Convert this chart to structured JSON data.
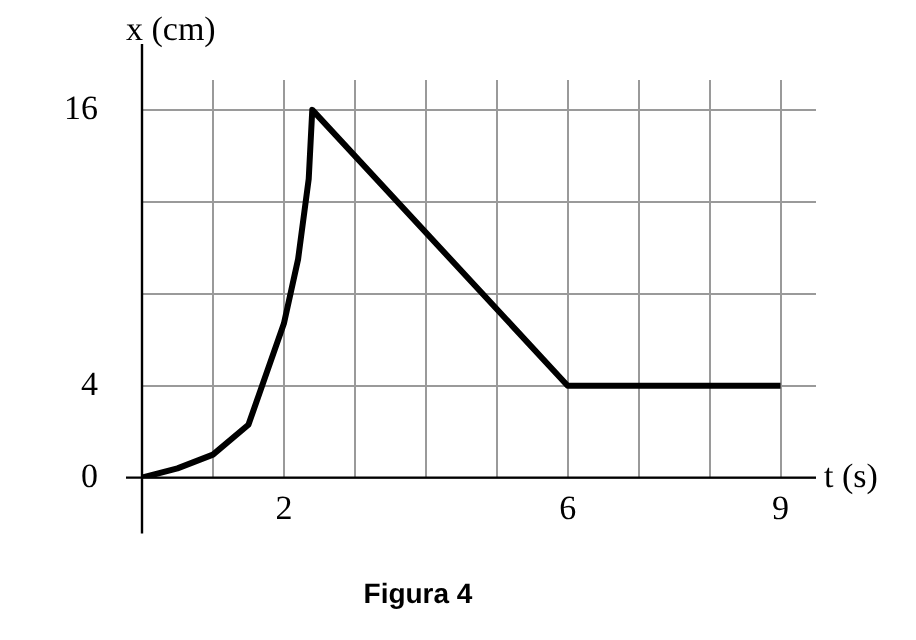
{
  "chart_data": {
    "type": "line",
    "title": "Figura 4",
    "xlabel": "t (s)",
    "ylabel": "x (cm)",
    "series": [
      {
        "color": "#000000",
        "x": [
          0,
          0.5,
          1,
          1.5,
          2,
          2.2,
          2.35,
          2.4,
          6,
          9
        ],
        "values": [
          0,
          0.4,
          1,
          2.3,
          6.7,
          9.5,
          13,
          16,
          4,
          4
        ]
      }
    ],
    "xlim": [
      0,
      9.5
    ],
    "ylim": [
      0,
      17.3
    ],
    "xticks": [
      {
        "value": 0,
        "label": null
      },
      {
        "value": 1,
        "label": null
      },
      2,
      {
        "value": 3,
        "label": null
      },
      {
        "value": 4,
        "label": null
      },
      {
        "value": 5,
        "label": null
      },
      6,
      {
        "value": 7,
        "label": null
      },
      {
        "value": 8,
        "label": null
      },
      9
    ],
    "yticks": [
      0,
      4,
      {
        "value": 8,
        "label": null
      },
      {
        "value": 12,
        "label": null
      },
      16
    ],
    "grid": true,
    "marker": "none",
    "line_style": "solid",
    "legend": false
  }
}
